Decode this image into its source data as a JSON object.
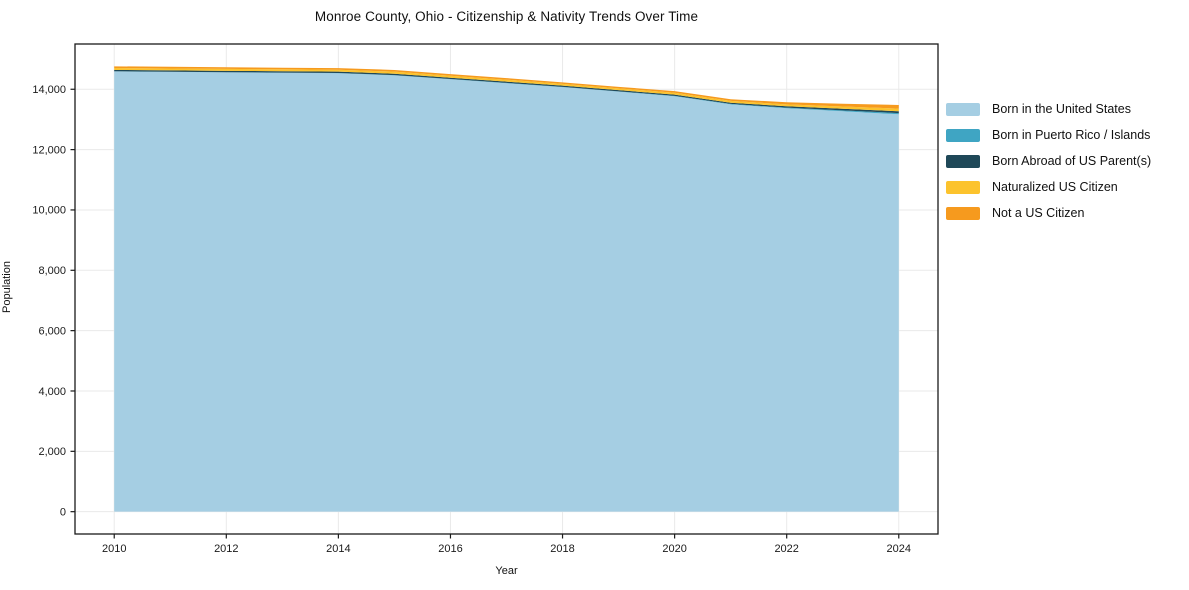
{
  "figure": {
    "title": "Monroe County, Ohio - Citizenship & Nativity Trends Over Time",
    "xlabel": "Year",
    "ylabel": "Population"
  },
  "chart_data": {
    "type": "area",
    "stacked": true,
    "title": "Monroe County, Ohio - Citizenship & Nativity Trends Over Time",
    "xlabel": "Year",
    "ylabel": "Population",
    "grid": true,
    "legend_position": "right of plot, top",
    "x": [
      2010,
      2011,
      2012,
      2013,
      2014,
      2015,
      2016,
      2017,
      2018,
      2019,
      2020,
      2021,
      2022,
      2023,
      2024
    ],
    "series": [
      {
        "name": "Born in the United States",
        "color": "#a5cee3",
        "values": [
          14590,
          14575,
          14560,
          14545,
          14530,
          14460,
          14330,
          14200,
          14070,
          13920,
          13770,
          13500,
          13370,
          13270,
          13170
        ]
      },
      {
        "name": "Born in Puerto Rico / Islands",
        "color": "#3fa5c3",
        "values": [
          5,
          5,
          5,
          8,
          8,
          10,
          10,
          10,
          10,
          10,
          12,
          15,
          20,
          30,
          40
        ]
      },
      {
        "name": "Born Abroad of US Parent(s)",
        "color": "#1f4858",
        "values": [
          45,
          45,
          45,
          45,
          45,
          45,
          42,
          42,
          40,
          40,
          40,
          40,
          45,
          55,
          60
        ]
      },
      {
        "name": "Naturalized US Citizen",
        "color": "#fcc32d",
        "values": [
          65,
          65,
          65,
          65,
          65,
          70,
          65,
          65,
          60,
          60,
          62,
          60,
          65,
          75,
          90
        ]
      },
      {
        "name": "Not a US Citizen",
        "color": "#f69a1e",
        "values": [
          55,
          55,
          55,
          52,
          52,
          55,
          53,
          53,
          50,
          50,
          56,
          55,
          70,
          90,
          120
        ]
      }
    ],
    "stack_totals": [
      14760,
      14745,
      14730,
      14715,
      14700,
      14640,
      14500,
      14370,
      14230,
      14080,
      13940,
      13670,
      13570,
      13520,
      13480
    ],
    "xlim": [
      2009.3,
      2024.7
    ],
    "ylim": [
      -740,
      15500
    ],
    "x_ticks": [
      2010,
      2012,
      2014,
      2016,
      2018,
      2020,
      2022,
      2024
    ],
    "y_ticks": [
      0,
      2000,
      4000,
      6000,
      8000,
      10000,
      12000,
      14000
    ],
    "y_tick_labels": [
      "0",
      "2,000",
      "4,000",
      "6,000",
      "8,000",
      "10,000",
      "12,000",
      "14,000"
    ],
    "grid_color": "#eaeaea",
    "spine_color": "#1a1a1a"
  }
}
